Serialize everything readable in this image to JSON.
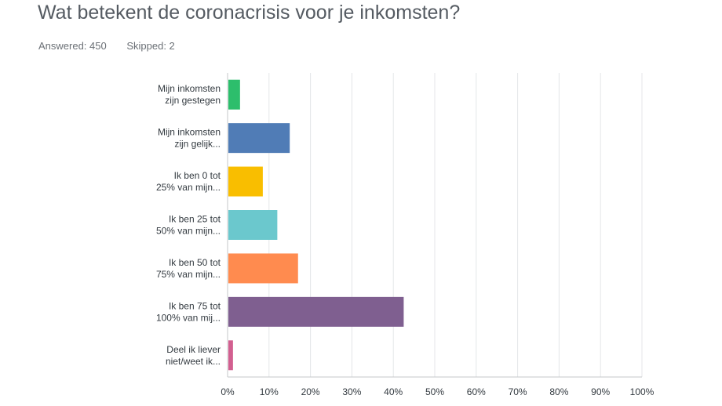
{
  "question": {
    "title": "Wat betekent de coronacrisis voor je inkomsten?",
    "answered": "Answered: 450",
    "skipped": "Skipped: 2"
  },
  "chart_data": {
    "type": "bar",
    "orientation": "horizontal",
    "categories": [
      [
        "Mijn inkomsten",
        "zijn gestegen"
      ],
      [
        "Mijn inkomsten",
        "zijn gelijk..."
      ],
      [
        "Ik ben 0 tot",
        "25% van mijn..."
      ],
      [
        "Ik ben 25 tot",
        "50% van mijn..."
      ],
      [
        "Ik ben 50 tot",
        "75% van mijn..."
      ],
      [
        "Ik ben 75 tot",
        "100% van mij..."
      ],
      [
        "Deel ik liever",
        "niet/weet ik..."
      ]
    ],
    "values": [
      3,
      15,
      8.5,
      12,
      17,
      42.5,
      1.3
    ],
    "colors": [
      "#2dbe6c",
      "#507cb6",
      "#f9be00",
      "#6bc8cd",
      "#ff8b4f",
      "#7f5f90",
      "#d25f90"
    ],
    "x_ticks": [
      "0%",
      "10%",
      "20%",
      "30%",
      "40%",
      "50%",
      "60%",
      "70%",
      "80%",
      "90%",
      "100%"
    ],
    "xlim": [
      0,
      100
    ],
    "grid": true
  }
}
